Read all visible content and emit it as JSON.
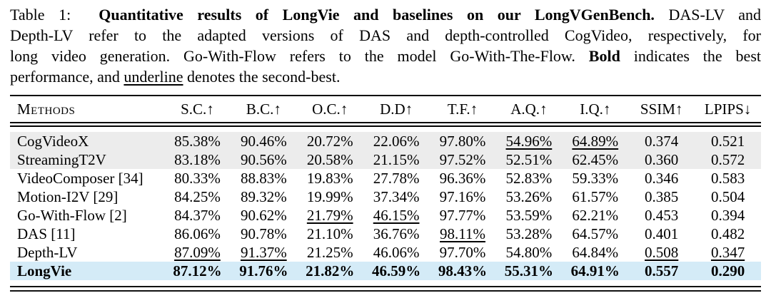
{
  "caption": {
    "lines": [
      {
        "segments": [
          {
            "t": "Table 1:  ",
            "s": "n"
          },
          {
            "t": "Quantitative results of LongVie and baselines on our LongVGenBench.",
            "s": "b"
          },
          {
            "t": " DAS-LV and",
            "s": "n"
          }
        ]
      },
      {
        "segments": [
          {
            "t": "Depth-LV refer to the adapted versions of DAS and depth-controlled CogVideo, respectively, for",
            "s": "n"
          }
        ]
      },
      {
        "segments": [
          {
            "t": "long video generation. Go-With-Flow refers to the model Go-With-The-Flow. ",
            "s": "n"
          },
          {
            "t": "Bold",
            "s": "b"
          },
          {
            "t": " indicates the best",
            "s": "n"
          }
        ]
      },
      {
        "segments": [
          {
            "t": "performance, and ",
            "s": "n"
          },
          {
            "t": "underline",
            "s": "u"
          },
          {
            "t": " denotes the second-best.",
            "s": "n"
          }
        ]
      }
    ]
  },
  "table": {
    "columns": [
      "Methods",
      "S.C.↑",
      "B.C.↑",
      "O.C.↑",
      "D.D↑",
      "T.F.↑",
      "A.Q.↑",
      "I.Q.↑",
      "SSIM↑",
      "LPIPS↓"
    ],
    "rows": [
      {
        "method": "CogVideoX",
        "shade": "gray",
        "bold": false,
        "cells": [
          {
            "v": "85.38%"
          },
          {
            "v": "90.46%"
          },
          {
            "v": "20.72%"
          },
          {
            "v": "22.06%"
          },
          {
            "v": "97.80%"
          },
          {
            "v": "54.96%",
            "u": true
          },
          {
            "v": "64.89%",
            "u": true
          },
          {
            "v": "0.374"
          },
          {
            "v": "0.521"
          }
        ]
      },
      {
        "method": "StreamingT2V",
        "shade": "gray",
        "bold": false,
        "cells": [
          {
            "v": "83.18%"
          },
          {
            "v": "90.56%"
          },
          {
            "v": "20.58%"
          },
          {
            "v": "21.15%"
          },
          {
            "v": "97.52%"
          },
          {
            "v": "52.51%"
          },
          {
            "v": "62.45%"
          },
          {
            "v": "0.360"
          },
          {
            "v": "0.572"
          }
        ]
      },
      {
        "method": "VideoComposer [34]",
        "shade": "white",
        "bold": false,
        "cells": [
          {
            "v": "80.33%"
          },
          {
            "v": "88.83%"
          },
          {
            "v": "19.83%"
          },
          {
            "v": "27.78%"
          },
          {
            "v": "96.36%"
          },
          {
            "v": "52.83%"
          },
          {
            "v": "59.33%"
          },
          {
            "v": "0.346"
          },
          {
            "v": "0.583"
          }
        ]
      },
      {
        "method": "Motion-I2V [29]",
        "shade": "white",
        "bold": false,
        "cells": [
          {
            "v": "84.25%"
          },
          {
            "v": "89.32%"
          },
          {
            "v": "19.99%"
          },
          {
            "v": "37.34%"
          },
          {
            "v": "97.16%"
          },
          {
            "v": "53.26%"
          },
          {
            "v": "61.57%"
          },
          {
            "v": "0.385"
          },
          {
            "v": "0.504"
          }
        ]
      },
      {
        "method": "Go-With-Flow [2]",
        "shade": "white",
        "bold": false,
        "cells": [
          {
            "v": "84.37%"
          },
          {
            "v": "90.62%"
          },
          {
            "v": "21.79%",
            "u": true
          },
          {
            "v": "46.15%",
            "u": true
          },
          {
            "v": "97.77%"
          },
          {
            "v": "53.59%"
          },
          {
            "v": "62.21%"
          },
          {
            "v": "0.453"
          },
          {
            "v": "0.394"
          }
        ]
      },
      {
        "method": "DAS [11]",
        "shade": "white",
        "bold": false,
        "cells": [
          {
            "v": "86.06%"
          },
          {
            "v": "90.78%"
          },
          {
            "v": "21.10%"
          },
          {
            "v": "36.76%"
          },
          {
            "v": "98.11%",
            "u": true
          },
          {
            "v": "53.28%"
          },
          {
            "v": "64.57%"
          },
          {
            "v": "0.401"
          },
          {
            "v": "0.482"
          }
        ]
      },
      {
        "method": "Depth-LV",
        "shade": "white",
        "bold": false,
        "cells": [
          {
            "v": "87.09%",
            "u": true
          },
          {
            "v": "91.37%",
            "u": true
          },
          {
            "v": "21.25%"
          },
          {
            "v": "46.06%"
          },
          {
            "v": "97.70%"
          },
          {
            "v": "54.80%"
          },
          {
            "v": "64.84%"
          },
          {
            "v": "0.508",
            "u": true
          },
          {
            "v": "0.347",
            "u": true
          }
        ]
      },
      {
        "method": "LongVie",
        "shade": "blue",
        "bold": true,
        "cells": [
          {
            "v": "87.12%"
          },
          {
            "v": "91.76%"
          },
          {
            "v": "21.82%"
          },
          {
            "v": "46.59%"
          },
          {
            "v": "98.43%"
          },
          {
            "v": "55.31%"
          },
          {
            "v": "64.91%"
          },
          {
            "v": "0.557"
          },
          {
            "v": "0.290"
          }
        ]
      }
    ]
  },
  "colors": {
    "row_gray": "#ececec",
    "row_blue": "#d4ebf7",
    "row_white": "#ffffff",
    "rule_black": "#000000"
  }
}
